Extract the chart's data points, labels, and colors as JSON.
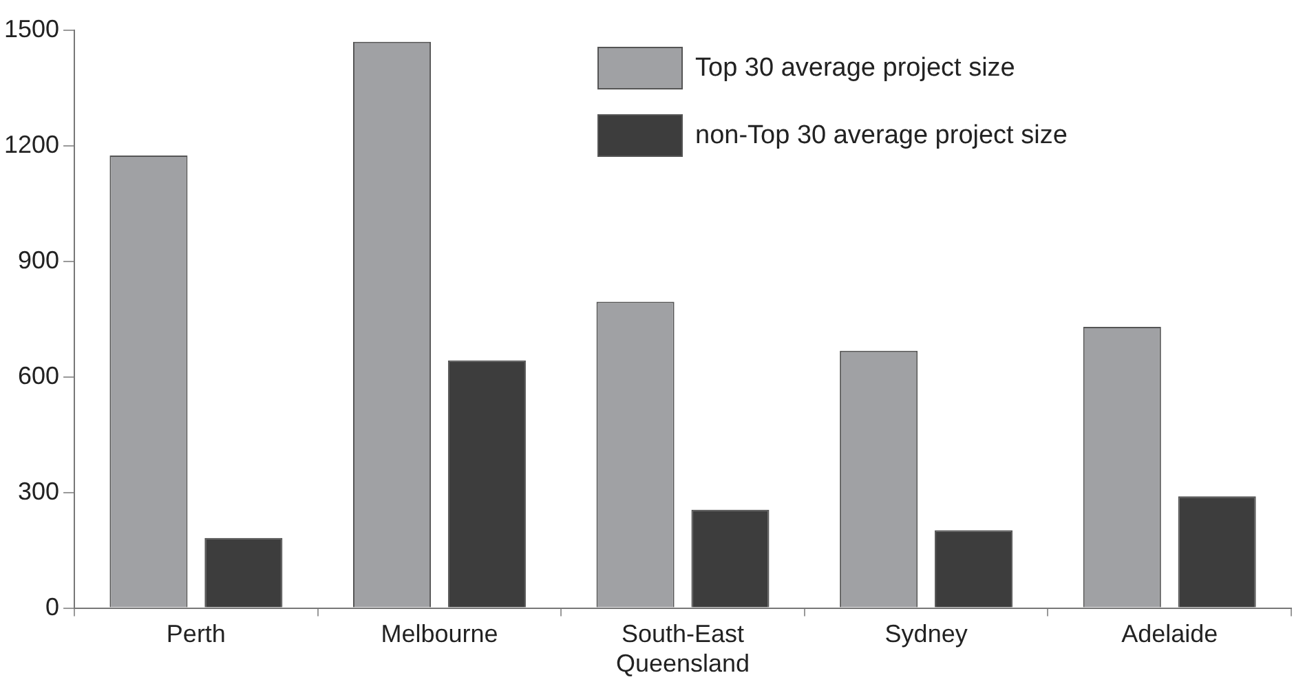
{
  "chart_data": {
    "type": "bar",
    "categories": [
      "Perth",
      "Melbourne",
      "South-East Queensland",
      "Sydney",
      "Adelaide"
    ],
    "series": [
      {
        "name": "Top 30 average project size",
        "color": "#a0a1a4",
        "values": [
          1175,
          1470,
          795,
          668,
          730
        ]
      },
      {
        "name": "non-Top 30 average project size",
        "color": "#3d3d3d",
        "values": [
          182,
          643,
          255,
          202,
          290
        ]
      }
    ],
    "ylim": [
      0,
      1500
    ],
    "yticks": [
      0,
      300,
      600,
      900,
      1200,
      1500
    ],
    "grid": false,
    "legend": "top right"
  }
}
